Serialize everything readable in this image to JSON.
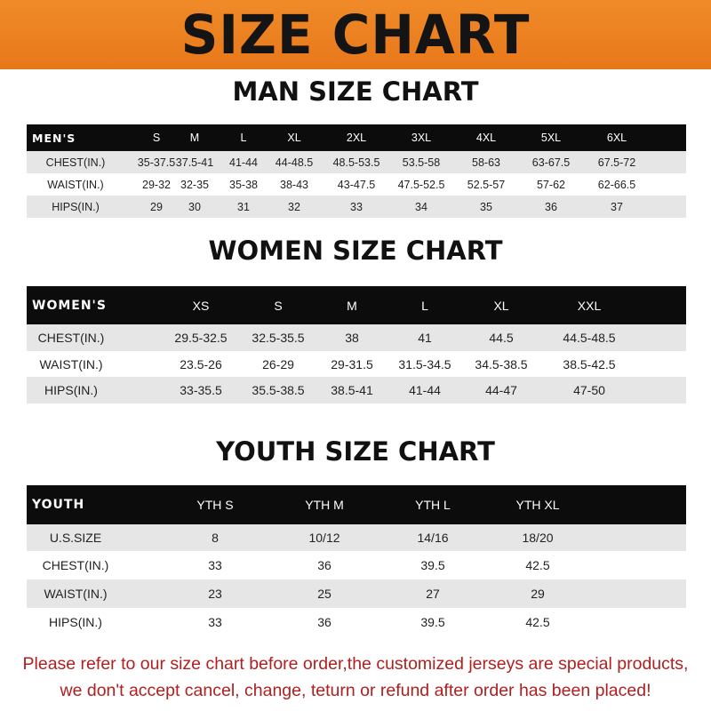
{
  "title": "SIZE CHART",
  "men": {
    "heading": "MAN SIZE CHART",
    "header": [
      "MEN'S",
      "S",
      "M",
      "L",
      "XL",
      "2XL",
      "3XL",
      "4XL",
      "5XL",
      "6XL"
    ],
    "rows": [
      [
        "CHEST(IN.)",
        "35-37.5",
        "37.5-41",
        "41-44",
        "44-48.5",
        "48.5-53.5",
        "53.5-58",
        "58-63",
        "63-67.5",
        "67.5-72"
      ],
      [
        "WAIST(IN.)",
        "29-32",
        "32-35",
        "35-38",
        "38-43",
        "43-47.5",
        "47.5-52.5",
        "52.5-57",
        "57-62",
        "62-66.5"
      ],
      [
        "HIPS(IN.)",
        "29",
        "30",
        "31",
        "32",
        "33",
        "34",
        "35",
        "36",
        "37"
      ]
    ]
  },
  "women": {
    "heading": "WOMEN SIZE CHART",
    "header": [
      "WOMEN'S",
      "XS",
      "S",
      "M",
      "L",
      "XL",
      "XXL"
    ],
    "rows": [
      [
        "CHEST(IN.)",
        "29.5-32.5",
        "32.5-35.5",
        "38",
        "41",
        "44.5",
        "44.5-48.5"
      ],
      [
        "WAIST(IN.)",
        "23.5-26",
        "26-29",
        "29-31.5",
        "31.5-34.5",
        "34.5-38.5",
        "38.5-42.5"
      ],
      [
        "HIPS(IN.)",
        "33-35.5",
        "35.5-38.5",
        "38.5-41",
        "41-44",
        "44-47",
        "47-50"
      ]
    ]
  },
  "youth": {
    "heading": "YOUTH SIZE CHART",
    "header": [
      "YOUTH",
      "YTH S",
      "YTH M",
      "YTH L",
      "YTH XL"
    ],
    "rows": [
      [
        "U.S.SIZE",
        "8",
        "10/12",
        "14/16",
        "18/20"
      ],
      [
        "CHEST(IN.)",
        "33",
        "36",
        "39.5",
        "42.5"
      ],
      [
        "WAIST(IN.)",
        "23",
        "25",
        "27",
        "29"
      ],
      [
        "HIPS(IN.)",
        "33",
        "36",
        "39.5",
        "42.5"
      ]
    ]
  },
  "notice": {
    "line1": "Please refer to our size chart before order,the customized jerseys are special products,",
    "line2": "we don't accept cancel, change, teturn or refund after order has been placed!"
  },
  "colors": {
    "banner": "#ef8424",
    "header_row": "#0c0c0c",
    "stripe": "#e6e6e6",
    "notice": "#b02020"
  }
}
